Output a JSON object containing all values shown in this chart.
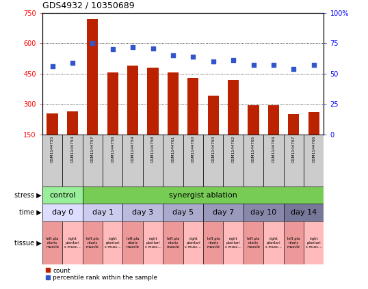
{
  "title": "GDS4932 / 10350689",
  "samples": [
    "GSM1144755",
    "GSM1144754",
    "GSM1144757",
    "GSM1144756",
    "GSM1144759",
    "GSM1144758",
    "GSM1144761",
    "GSM1144760",
    "GSM1144763",
    "GSM1144762",
    "GSM1144765",
    "GSM1144764",
    "GSM1144767",
    "GSM1144766"
  ],
  "counts": [
    255,
    265,
    720,
    455,
    490,
    480,
    455,
    430,
    340,
    420,
    295,
    295,
    250,
    260
  ],
  "percentiles": [
    56,
    59,
    75,
    70,
    72,
    71,
    65,
    64,
    60,
    61,
    57,
    57,
    54,
    57
  ],
  "ylim_left": [
    150,
    750
  ],
  "ylim_right": [
    0,
    100
  ],
  "yticks_left": [
    150,
    300,
    450,
    600,
    750
  ],
  "yticks_right": [
    0,
    25,
    50,
    75,
    100
  ],
  "bar_color": "#bb2200",
  "dot_color": "#3355cc",
  "stress_row": {
    "label": "stress",
    "groups": [
      {
        "text": "control",
        "span": [
          0,
          2
        ],
        "color": "#99ee99"
      },
      {
        "text": "synergist ablation",
        "span": [
          2,
          14
        ],
        "color": "#77cc55"
      }
    ]
  },
  "time_row": {
    "label": "time",
    "groups": [
      {
        "text": "day 0",
        "span": [
          0,
          2
        ],
        "color": "#ddddff"
      },
      {
        "text": "day 1",
        "span": [
          2,
          4
        ],
        "color": "#ccccee"
      },
      {
        "text": "day 3",
        "span": [
          4,
          6
        ],
        "color": "#bbbbdd"
      },
      {
        "text": "day 5",
        "span": [
          6,
          8
        ],
        "color": "#aaaacc"
      },
      {
        "text": "day 7",
        "span": [
          8,
          10
        ],
        "color": "#9999bb"
      },
      {
        "text": "day 10",
        "span": [
          10,
          12
        ],
        "color": "#8888aa"
      },
      {
        "text": "day 14",
        "span": [
          12,
          14
        ],
        "color": "#777799"
      }
    ]
  },
  "tissue_left_color": "#ee9999",
  "tissue_right_color": "#ffbbbb",
  "tissue_left_text": "left pla\nntaris\nmuscle",
  "tissue_right_text": "right\nplantari\ns musc…"
}
